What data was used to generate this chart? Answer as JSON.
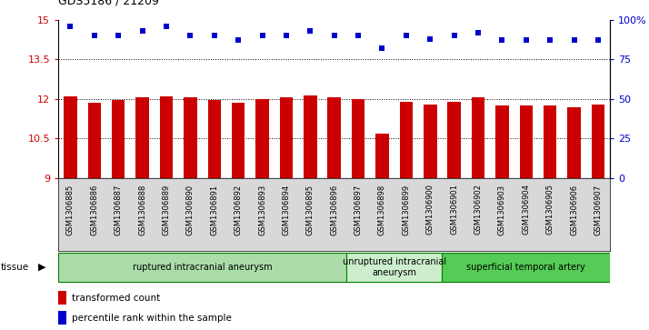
{
  "title": "GDS5186 / 21209",
  "samples": [
    "GSM1306885",
    "GSM1306886",
    "GSM1306887",
    "GSM1306888",
    "GSM1306889",
    "GSM1306890",
    "GSM1306891",
    "GSM1306892",
    "GSM1306893",
    "GSM1306894",
    "GSM1306895",
    "GSM1306896",
    "GSM1306897",
    "GSM1306898",
    "GSM1306899",
    "GSM1306900",
    "GSM1306901",
    "GSM1306902",
    "GSM1306903",
    "GSM1306904",
    "GSM1306905",
    "GSM1306906",
    "GSM1306907"
  ],
  "bar_values": [
    12.1,
    11.85,
    11.95,
    12.05,
    12.1,
    12.05,
    11.95,
    11.85,
    12.0,
    12.05,
    12.15,
    12.05,
    12.0,
    10.7,
    11.9,
    11.8,
    11.9,
    12.05,
    11.75,
    11.75,
    11.75,
    11.7,
    11.8
  ],
  "percentile_values": [
    96,
    90,
    90,
    93,
    96,
    90,
    90,
    87,
    90,
    90,
    93,
    90,
    90,
    82,
    90,
    88,
    90,
    92,
    87,
    87,
    87,
    87,
    87
  ],
  "ylim_left": [
    9,
    15
  ],
  "ylim_right": [
    0,
    100
  ],
  "yticks_left": [
    9,
    10.5,
    12,
    13.5,
    15
  ],
  "ytick_labels_left": [
    "9",
    "10.5",
    "12",
    "13.5",
    "15"
  ],
  "yticks_right": [
    0,
    25,
    50,
    75,
    100
  ],
  "ytick_labels_right": [
    "0",
    "25",
    "50",
    "75",
    "100%"
  ],
  "bar_color": "#cc0000",
  "dot_color": "#0000cc",
  "groups": [
    {
      "label": "ruptured intracranial aneurysm",
      "start": 0,
      "end": 12,
      "color": "#aaddaa"
    },
    {
      "label": "unruptured intracranial\naneurysm",
      "start": 12,
      "end": 16,
      "color": "#cceecc"
    },
    {
      "label": "superficial temporal artery",
      "start": 16,
      "end": 23,
      "color": "#55cc55"
    }
  ],
  "tissue_label": "tissue",
  "legend_bar_label": "transformed count",
  "legend_dot_label": "percentile rank within the sample",
  "bg_color": "#ffffff",
  "plot_bg_color": "#ffffff",
  "xtick_bg_color": "#d8d8d8",
  "group_border_color": "#008000"
}
